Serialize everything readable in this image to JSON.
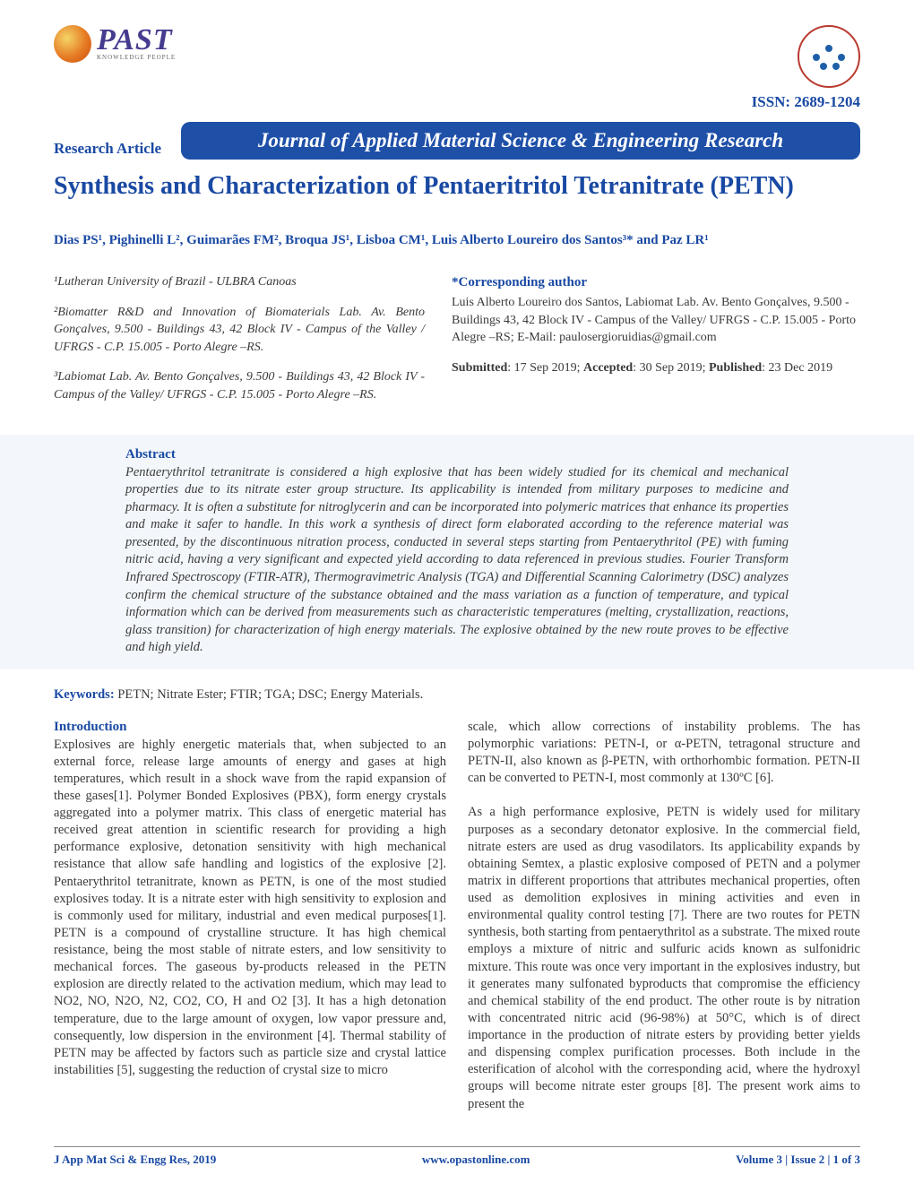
{
  "logo": {
    "brand": "PAST",
    "tagline": "KNOWLEDGE PEOPLE"
  },
  "issn": "ISSN: 2689-1204",
  "article_type": "Research Article",
  "journal_name": "Journal of Applied Material Science & Engineering Research",
  "title": "Synthesis and Characterization of Pentaeritritol Tetranitrate (PETN)",
  "authors_html": "Dias PS¹, Pighinelli L², Guimarães FM², Broqua JS¹, Lisboa CM¹, Luis Alberto Loureiro dos Santos³* and Paz LR¹",
  "affiliations": {
    "a1": "¹Lutheran University of Brazil - ULBRA Canoas",
    "a2": "²Biomatter R&D and Innovation of Biomaterials Lab. Av. Bento Gonçalves, 9.500 - Buildings 43, 42 Block IV - Campus of the Valley / UFRGS - C.P. 15.005 - Porto Alegre –RS.",
    "a3": "³Labiomat Lab. Av. Bento Gonçalves, 9.500 - Buildings 43, 42 Block IV - Campus of the Valley/ UFRGS - C.P. 15.005 - Porto Alegre –RS."
  },
  "corresponding": {
    "heading": "*Corresponding author",
    "text": "Luis Alberto Loureiro dos Santos, Labiomat Lab. Av. Bento Gonçalves, 9.500 - Buildings 43, 42 Block IV - Campus of the Valley/ UFRGS - C.P. 15.005 - Porto Alegre –RS; E-Mail: paulosergioruidias@gmail.com"
  },
  "dates": {
    "submitted_label": "Submitted",
    "submitted": ": 17 Sep 2019; ",
    "accepted_label": "Accepted",
    "accepted": ": 30 Sep 2019; ",
    "published_label": "Published",
    "published": ": 23 Dec 2019"
  },
  "abstract": {
    "heading": "Abstract",
    "text": "Pentaerythritol tetranitrate is considered a high explosive that has been widely studied for its chemical and mechanical properties due to its nitrate ester group structure. Its applicability is intended from military purposes to medicine and pharmacy. It is often a substitute for nitroglycerin and can be incorporated into polymeric matrices that enhance its properties and make it safer to handle. In this work a synthesis of direct form elaborated according to the reference material was presented, by the discontinuous nitration process, conducted in several steps starting from Pentaerythritol (PE) with fuming nitric acid, having a very significant and expected yield according to data referenced in previous studies. Fourier Transform Infrared Spectroscopy (FTIR-ATR), Thermogravimetric Analysis (TGA) and Differential Scanning Calorimetry (DSC) analyzes confirm the chemical structure of the substance obtained and the mass variation as a function of temperature, and typical information which can be derived from measurements such as characteristic temperatures (melting, crystallization, reactions, glass transition) for characterization of high energy materials. The explosive obtained by the new route proves to be effective and high yield."
  },
  "keywords": {
    "label": "Keywords:",
    "text": " PETN; Nitrate Ester; FTIR; TGA; DSC; Energy Materials."
  },
  "intro_heading": "Introduction",
  "column_left": "Explosives are highly energetic materials that, when subjected to an external force, release large amounts of energy and gases at high temperatures, which result in a shock wave from the rapid expansion of these gases[1]. Polymer Bonded Explosives (PBX), form energy crystals aggregated into a polymer matrix. This class of energetic material has received great attention in scientific research for providing a high performance explosive, detonation sensitivity with high mechanical resistance that allow safe handling and logistics of the explosive [2]. Pentaerythritol tetranitrate, known as PETN, is one of the most studied explosives today. It is a nitrate ester with high sensitivity to explosion and is commonly used for military, industrial and even medical purposes[1]. PETN is a compound of crystalline structure. It has high chemical resistance, being the most stable of nitrate esters, and low sensitivity to mechanical forces. The gaseous by-products released in the PETN explosion are directly related to the activation medium, which may lead to NO2, NO, N2O, N2, CO2, CO, H and O2 [3]. It has a high detonation temperature, due to the large amount of oxygen, low vapor pressure and, consequently, low dispersion in the environment [4]. Thermal stability of PETN may be affected by factors such as particle size and crystal lattice instabilities [5], suggesting the reduction of crystal size to micro",
  "column_right_p1": "scale, which allow corrections of instability problems. The has polymorphic variations: PETN-I, or α-PETN, tetragonal structure and PETN-II, also known as β-PETN, with orthorhombic formation. PETN-II can be converted to PETN-I, most commonly at 130ºC [6].",
  "column_right_p2": "As a high performance explosive, PETN is widely used for military purposes as a secondary detonator explosive. In the commercial field, nitrate esters are used as drug vasodilators. Its applicability expands by obtaining Semtex, a plastic explosive composed of PETN and a polymer matrix in different proportions that attributes mechanical properties, often used as demolition explosives in mining activities and even in environmental quality control testing [7]. There are two routes for PETN synthesis, both starting from pentaerythritol as a substrate. The mixed route employs a mixture of nitric and sulfuric acids known as sulfonidric mixture. This route was once very important in the explosives industry, but it generates many sulfonated byproducts that compromise the efficiency and chemical stability of the end product. The other route is by nitration with concentrated nitric acid (96-98%) at 50°C, which is of direct importance in the production of nitrate esters by providing better yields and dispensing complex purification processes. Both include in the esterification of alcohol with the corresponding acid, where the hydroxyl groups will become nitrate ester groups [8]. The present work aims to present the",
  "footer": {
    "left": "J App Mat Sci & Engg Res, 2019",
    "center": "www.opastonline.com",
    "right": "Volume 3 | Issue 2 | 1 of 3"
  },
  "colors": {
    "primary": "#1949a3",
    "banner": "#1f50a8",
    "abstract_bg": "#f3f7fb"
  }
}
